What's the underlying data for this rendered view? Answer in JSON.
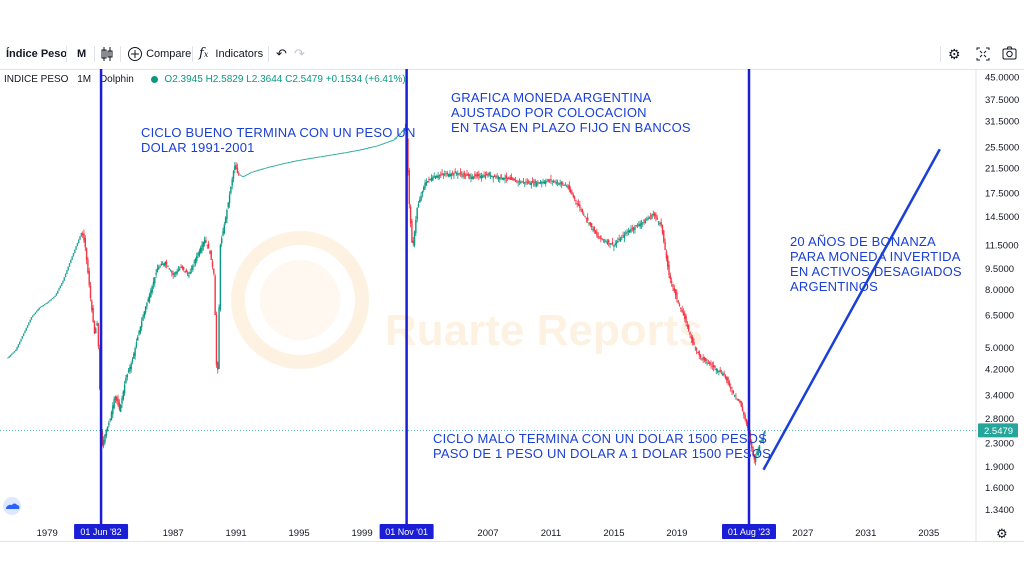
{
  "toolbar": {
    "symbol": "Índice Peso",
    "interval": "M",
    "compare_label": "Compare",
    "indicators_label": "Indicators"
  },
  "legend": {
    "symbol_name": "INDICE PESO",
    "interval": "1M",
    "source": "Dolphin",
    "open": "O2.3945",
    "high": "H2.5829",
    "low": "L2.3644",
    "close": "C2.5479",
    "change": "+0.1534 (+6.41%)"
  },
  "watermark": "Ruarte Reports",
  "annotations": {
    "good_cycle": "CICLO BUENO TERMINA CON UN PESO UN\nDOLAR 1991-2001",
    "title": "GRAFICA MONEDA ARGENTINA\nAJUSTADO POR COLOCACION\nEN TASA EN PLAZO FIJO EN BANCOS",
    "bonanza": "20 AÑOS DE BONANZA\nPARA MONEDA INVERTIDA\nEN ACTIVOS DESAGIADOS\nARGENTINOS",
    "bad_cycle": "CICLO MALO TERMINA CON UN DOLAR 1500 PESOS\nPASO DE 1 PESO UN DOLAR A 1 DOLAR 1500 PESOS"
  },
  "colors": {
    "up": "#089981",
    "down": "#f23645",
    "line": "#26a69a",
    "vline": "#1a1fd6",
    "annotation": "#1a3fd6",
    "axis_text": "#131722",
    "last_price_bg": "#26a69a"
  },
  "chart_data": {
    "type": "candlestick",
    "y_scale": "log",
    "ylim": [
      1.25,
      48
    ],
    "xlim": [
      1976.0,
      2038.0
    ],
    "y_ticks": [
      "45.0000",
      "37.5000",
      "31.5000",
      "25.5000",
      "21.5000",
      "17.5000",
      "14.5000",
      "11.5000",
      "9.5000",
      "8.0000",
      "6.5000",
      "5.0000",
      "4.2000",
      "3.4000",
      "2.8000",
      "2.3000",
      "1.9000",
      "1.6000",
      "1.3400"
    ],
    "x_ticks": [
      "1979",
      "1987",
      "1991",
      "1995",
      "1999",
      "2007",
      "2011",
      "2015",
      "2019",
      "2027",
      "2031",
      "2035"
    ],
    "last_price": "2.5479",
    "vertical_markers": [
      {
        "date": 1982.42,
        "label": "01 Jun '82"
      },
      {
        "date": 2001.83,
        "label": "01 Nov '01"
      },
      {
        "date": 2023.58,
        "label": "01 Aug '23"
      }
    ],
    "price_path": [
      [
        1976.5,
        4.6
      ],
      [
        1977.0,
        4.9
      ],
      [
        1977.5,
        5.6
      ],
      [
        1978.0,
        6.4
      ],
      [
        1978.5,
        6.9
      ],
      [
        1979.0,
        7.2
      ],
      [
        1979.5,
        7.6
      ],
      [
        1980.0,
        8.6
      ],
      [
        1980.5,
        10.2
      ],
      [
        1981.0,
        12.0
      ],
      [
        1981.2,
        12.8
      ],
      [
        1981.4,
        11.5
      ],
      [
        1981.6,
        9.0
      ],
      [
        1981.8,
        7.0
      ],
      [
        1982.0,
        5.6
      ],
      [
        1982.2,
        6.2
      ],
      [
        1982.45,
        2.2
      ],
      [
        1982.7,
        2.5
      ],
      [
        1983.0,
        2.8
      ],
      [
        1983.3,
        3.4
      ],
      [
        1983.6,
        3.0
      ],
      [
        1984.0,
        3.9
      ],
      [
        1984.4,
        4.5
      ],
      [
        1984.8,
        5.6
      ],
      [
        1985.2,
        6.8
      ],
      [
        1985.6,
        8.0
      ],
      [
        1986.0,
        9.5
      ],
      [
        1986.5,
        10.0
      ],
      [
        1987.0,
        9.0
      ],
      [
        1987.5,
        9.6
      ],
      [
        1988.0,
        9.0
      ],
      [
        1988.5,
        10.5
      ],
      [
        1989.0,
        12.0
      ],
      [
        1989.3,
        11.0
      ],
      [
        1989.6,
        9.0
      ],
      [
        1989.8,
        3.4
      ],
      [
        1990.0,
        11.5
      ],
      [
        1990.3,
        14.0
      ],
      [
        1990.6,
        17.5
      ],
      [
        1990.9,
        22.0
      ],
      [
        1991.1,
        20.5
      ],
      [
        1991.4,
        20.0
      ],
      [
        1992.0,
        20.8
      ],
      [
        1993.0,
        21.6
      ],
      [
        1994.0,
        22.3
      ],
      [
        1995.0,
        22.9
      ],
      [
        1996.0,
        23.4
      ],
      [
        1997.0,
        23.9
      ],
      [
        1998.0,
        24.4
      ],
      [
        1999.0,
        25.0
      ],
      [
        2000.0,
        25.8
      ],
      [
        2001.0,
        27.0
      ],
      [
        2001.8,
        30.0
      ],
      [
        2002.0,
        16.0
      ],
      [
        2002.2,
        11.0
      ],
      [
        2002.5,
        15.5
      ],
      [
        2003.0,
        19.0
      ],
      [
        2003.5,
        20.0
      ],
      [
        2004.0,
        20.3
      ],
      [
        2005.0,
        20.6
      ],
      [
        2006.0,
        20.0
      ],
      [
        2007.0,
        20.3
      ],
      [
        2008.0,
        19.8
      ],
      [
        2009.0,
        19.2
      ],
      [
        2010.0,
        19.0
      ],
      [
        2011.0,
        19.4
      ],
      [
        2012.0,
        18.6
      ],
      [
        2013.0,
        15.0
      ],
      [
        2014.0,
        12.2
      ],
      [
        2015.0,
        11.5
      ],
      [
        2016.0,
        13.0
      ],
      [
        2017.0,
        14.0
      ],
      [
        2017.5,
        14.8
      ],
      [
        2018.0,
        13.5
      ],
      [
        2018.5,
        9.0
      ],
      [
        2019.0,
        7.4
      ],
      [
        2019.5,
        6.3
      ],
      [
        2020.0,
        5.2
      ],
      [
        2020.5,
        4.6
      ],
      [
        2021.0,
        4.4
      ],
      [
        2021.5,
        4.2
      ],
      [
        2022.0,
        4.0
      ],
      [
        2022.5,
        3.5
      ],
      [
        2023.0,
        3.2
      ],
      [
        2023.5,
        2.6
      ],
      [
        2023.9,
        2.0
      ],
      [
        2024.3,
        2.3
      ],
      [
        2024.6,
        2.55
      ]
    ],
    "trend_line": [
      [
        2024.5,
        1.85
      ],
      [
        2035.7,
        25.0
      ]
    ]
  }
}
